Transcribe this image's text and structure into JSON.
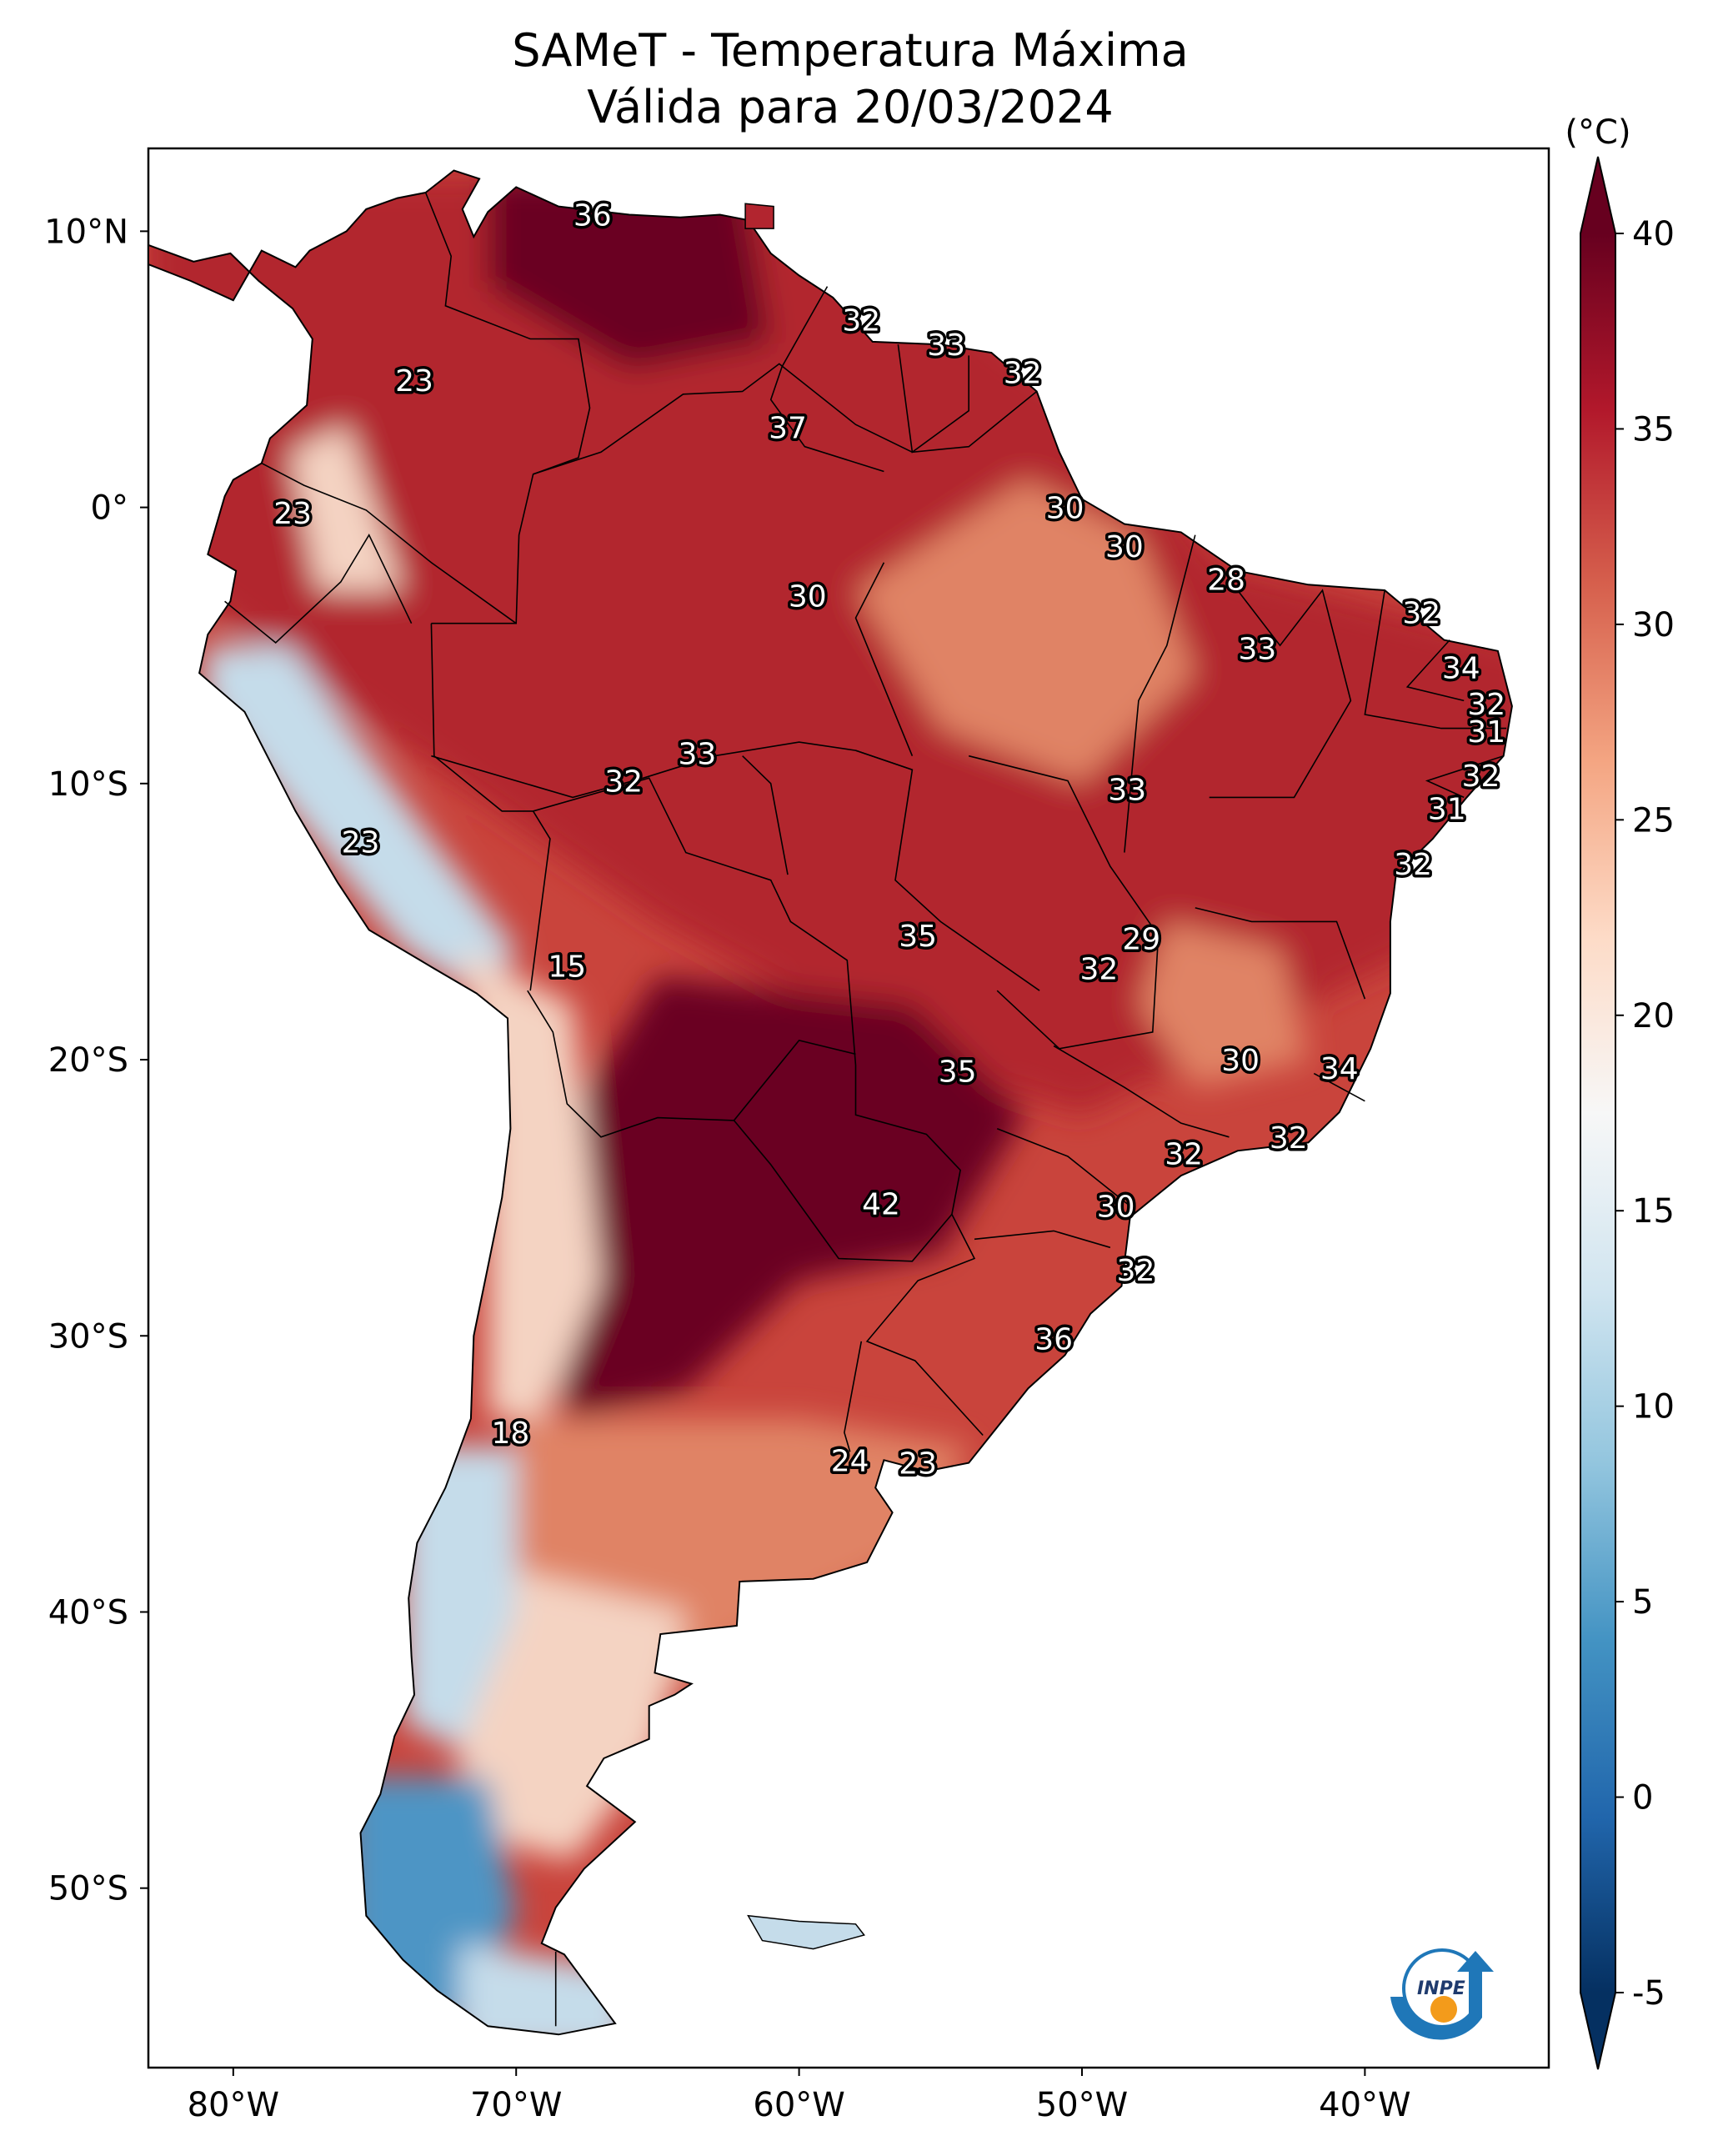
{
  "title_line1": "SAMeT - Temperatura Máxima",
  "title_line2": "Válida para 20/03/2024",
  "map": {
    "lon_ticks": [
      {
        "value": -80,
        "label": "80°W"
      },
      {
        "value": -70,
        "label": "70°W"
      },
      {
        "value": -60,
        "label": "60°W"
      },
      {
        "value": -50,
        "label": "50°W"
      },
      {
        "value": -40,
        "label": "40°W"
      }
    ],
    "lat_ticks": [
      {
        "value": 10,
        "label": "10°N"
      },
      {
        "value": 0,
        "label": "0°"
      },
      {
        "value": -10,
        "label": "10°S"
      },
      {
        "value": -20,
        "label": "20°S"
      },
      {
        "value": -30,
        "label": "30°S"
      },
      {
        "value": -40,
        "label": "40°S"
      },
      {
        "value": -50,
        "label": "50°S"
      }
    ],
    "extent": {
      "lon_min": -83,
      "lon_max": -33.5,
      "lat_min": -56.5,
      "lat_max": 13
    }
  },
  "station_values": [
    {
      "text": "36",
      "lon": -67.3,
      "lat": 10.6
    },
    {
      "text": "32",
      "lon": -57.8,
      "lat": 6.8
    },
    {
      "text": "33",
      "lon": -54.8,
      "lat": 5.9
    },
    {
      "text": "32",
      "lon": -52.1,
      "lat": 4.9
    },
    {
      "text": "23",
      "lon": -73.6,
      "lat": 4.6
    },
    {
      "text": "37",
      "lon": -60.4,
      "lat": 2.9
    },
    {
      "text": "23",
      "lon": -77.9,
      "lat": -0.2
    },
    {
      "text": "30",
      "lon": -50.6,
      "lat": 0.0
    },
    {
      "text": "30",
      "lon": -48.5,
      "lat": -1.4
    },
    {
      "text": "28",
      "lon": -44.9,
      "lat": -2.6
    },
    {
      "text": "30",
      "lon": -59.7,
      "lat": -3.2
    },
    {
      "text": "32",
      "lon": -38.0,
      "lat": -3.8
    },
    {
      "text": "33",
      "lon": -43.8,
      "lat": -5.1
    },
    {
      "text": "34",
      "lon": -36.6,
      "lat": -5.8
    },
    {
      "text": "32",
      "lon": -35.7,
      "lat": -7.1
    },
    {
      "text": "31",
      "lon": -35.7,
      "lat": -8.1
    },
    {
      "text": "33",
      "lon": -63.6,
      "lat": -8.9
    },
    {
      "text": "32",
      "lon": -35.9,
      "lat": -9.7
    },
    {
      "text": "32",
      "lon": -66.2,
      "lat": -9.9
    },
    {
      "text": "33",
      "lon": -48.4,
      "lat": -10.2
    },
    {
      "text": "31",
      "lon": -37.1,
      "lat": -10.9
    },
    {
      "text": "23",
      "lon": -75.5,
      "lat": -12.1
    },
    {
      "text": "32",
      "lon": -38.3,
      "lat": -12.9
    },
    {
      "text": "35",
      "lon": -55.8,
      "lat": -15.5
    },
    {
      "text": "29",
      "lon": -47.9,
      "lat": -15.6
    },
    {
      "text": "32",
      "lon": -49.4,
      "lat": -16.7
    },
    {
      "text": "15",
      "lon": -68.2,
      "lat": -16.6
    },
    {
      "text": "30",
      "lon": -44.4,
      "lat": -20.0
    },
    {
      "text": "34",
      "lon": -40.9,
      "lat": -20.3
    },
    {
      "text": "35",
      "lon": -54.4,
      "lat": -20.4
    },
    {
      "text": "32",
      "lon": -42.7,
      "lat": -22.8
    },
    {
      "text": "32",
      "lon": -46.4,
      "lat": -23.4
    },
    {
      "text": "42",
      "lon": -57.1,
      "lat": -25.2
    },
    {
      "text": "30",
      "lon": -48.8,
      "lat": -25.3
    },
    {
      "text": "32",
      "lon": -48.1,
      "lat": -27.6
    },
    {
      "text": "36",
      "lon": -51.0,
      "lat": -30.1
    },
    {
      "text": "18",
      "lon": -70.2,
      "lat": -33.5
    },
    {
      "text": "24",
      "lon": -58.2,
      "lat": -34.5
    },
    {
      "text": "23",
      "lon": -55.8,
      "lat": -34.6
    }
  ],
  "colorbar": {
    "unit": "(°C)",
    "min": -5,
    "max": 40,
    "ticks": [
      {
        "value": 40,
        "label": "40"
      },
      {
        "value": 35,
        "label": "35"
      },
      {
        "value": 30,
        "label": "30"
      },
      {
        "value": 25,
        "label": "25"
      },
      {
        "value": 20,
        "label": "20"
      },
      {
        "value": 15,
        "label": "15"
      },
      {
        "value": 10,
        "label": "10"
      },
      {
        "value": 5,
        "label": "5"
      },
      {
        "value": 0,
        "label": "0"
      },
      {
        "value": -5,
        "label": "-5"
      }
    ],
    "extend": "both",
    "colormap": [
      "#053061",
      "#2166ac",
      "#4393c3",
      "#92c5de",
      "#d1e5f0",
      "#f7f7f7",
      "#fddbc7",
      "#f4a582",
      "#d6604d",
      "#b2182b",
      "#67001f"
    ]
  },
  "colors": {
    "very_hot": "#6b0620",
    "hot": "#b2252f",
    "warm": "#c9443c",
    "mild": "#e08365",
    "cool": "#f4d3c2",
    "cold": "#c5dcea",
    "very_cold": "#4e95c5"
  },
  "logo": {
    "text": "INPE",
    "blue": "#1f77b8",
    "orange": "#f39b1b"
  }
}
